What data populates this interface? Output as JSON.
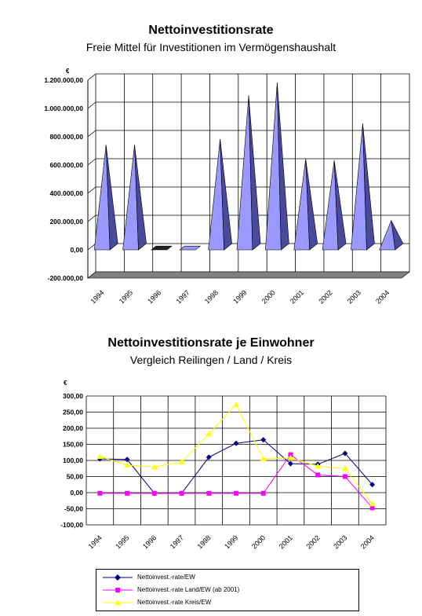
{
  "chart_data": [
    {
      "type": "bar",
      "title": "Nettoinvestitionsrate",
      "subtitle": "Freie Mittel für Investitionen im Vermögenshaushalt",
      "ylabel": "€",
      "categories": [
        "1994",
        "1995",
        "1996",
        "1997",
        "1998",
        "1999",
        "2000",
        "2001",
        "2002",
        "2003",
        "2004"
      ],
      "values": [
        720000,
        720000,
        -5000,
        15000,
        760000,
        1070000,
        1160000,
        620000,
        610000,
        870000,
        185000
      ],
      "ylim": [
        -200000,
        1200000
      ],
      "yticks": [
        "-200.000,00",
        "0,00",
        "200.000,00",
        "400.000,00",
        "600.000,00",
        "800.000,00",
        "1.000.000,00",
        "1.200.000,00"
      ],
      "grid": true,
      "colors": {
        "bar": "#9999ff",
        "bar_dark": "#4a4a9a",
        "floor": "#808080"
      }
    },
    {
      "type": "line",
      "title": "Nettoinvestitionsrate je Einwohner",
      "subtitle": "Vergleich Reilingen / Land / Kreis",
      "ylabel": "€",
      "categories": [
        "1994",
        "1995",
        "1996",
        "1997",
        "1998",
        "1999",
        "2000",
        "2001",
        "2002",
        "2003",
        "2004"
      ],
      "ylim": [
        -100,
        300
      ],
      "yticks": [
        "-100,00",
        "-50,00",
        "0,00",
        "50,00",
        "100,00",
        "150,00",
        "200,00",
        "250,00",
        "300,00"
      ],
      "grid": true,
      "legend": "bottom",
      "series": [
        {
          "name": "Nettoinvest.-rate/EW",
          "color": "#000080",
          "marker": "diamond",
          "values": [
            105,
            103,
            -2,
            -2,
            110,
            153,
            164,
            90,
            88,
            122,
            25
          ]
        },
        {
          "name": "Nettoinvest.-rate Land/EW (ab 2001)",
          "color": "#ff00ff",
          "marker": "square",
          "values": [
            -2,
            -2,
            -2,
            -2,
            -2,
            -2,
            -2,
            118,
            55,
            50,
            -47
          ]
        },
        {
          "name": "Nettoinvest.-rate Kreis/EW",
          "color": "#ffff00",
          "marker": "triangle",
          "values": [
            112,
            85,
            80,
            95,
            182,
            273,
            105,
            108,
            82,
            75,
            -35
          ]
        }
      ]
    }
  ]
}
